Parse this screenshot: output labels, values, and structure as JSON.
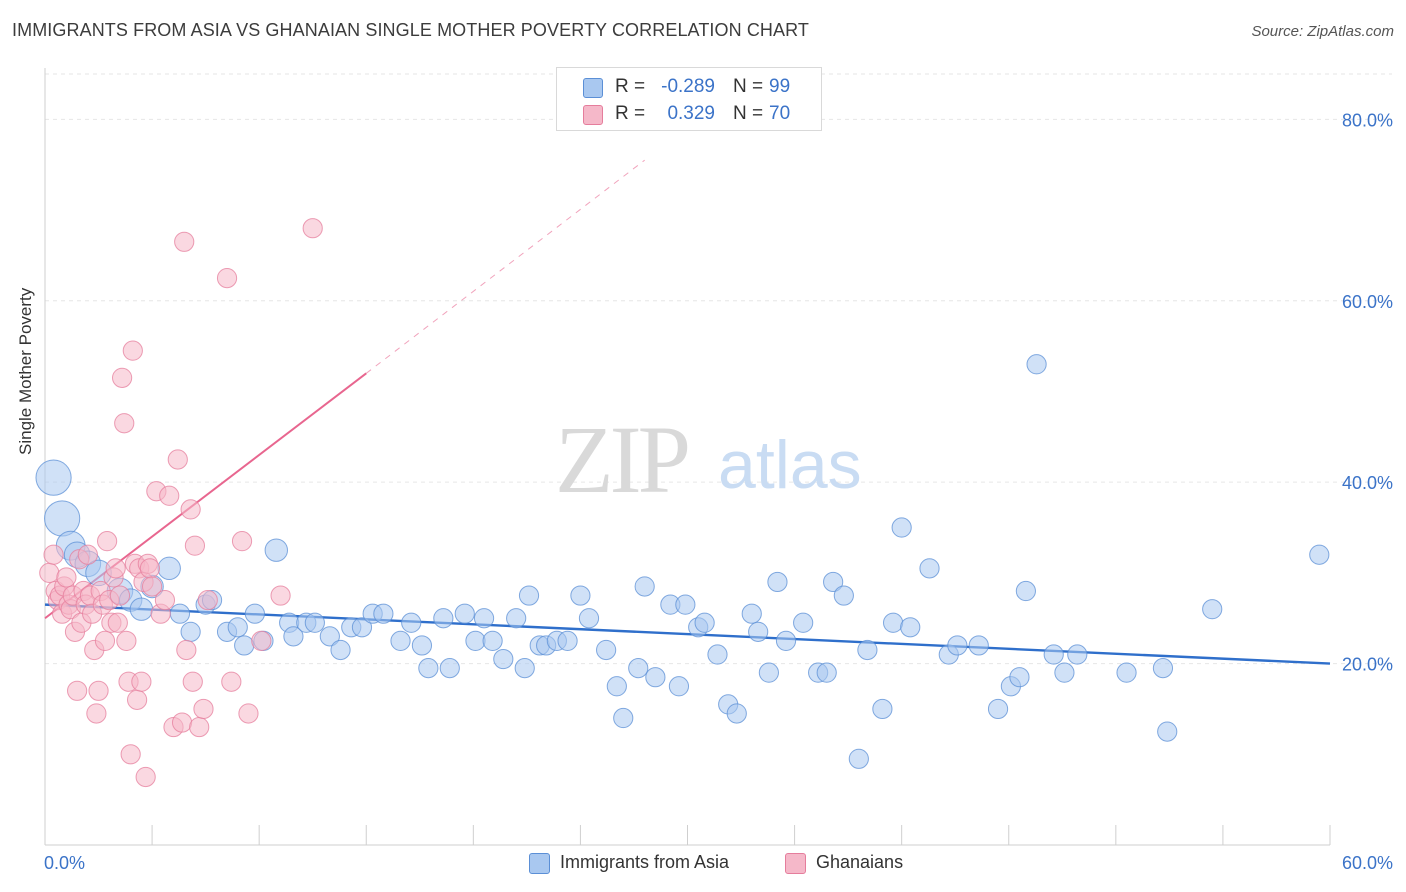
{
  "header": {
    "title": "IMMIGRANTS FROM ASIA VS GHANAIAN SINGLE MOTHER POVERTY CORRELATION CHART",
    "source": "Source: ZipAtlas.com"
  },
  "watermark": {
    "zip": "ZIP",
    "atlas": "atlas"
  },
  "legend": {
    "blue": {
      "r_label": "R =",
      "r_value": "-0.289",
      "n_label": "N =",
      "n_value": "99"
    },
    "pink": {
      "r_label": "R =",
      "r_value": "0.329",
      "n_label": "N =",
      "n_value": "70"
    }
  },
  "colors": {
    "blue_fill": "#a9c8f0",
    "blue_stroke": "#5b8fd6",
    "blue_line": "#2f6fcb",
    "pink_fill": "#f5b8c9",
    "pink_stroke": "#e57d9c",
    "pink_line": "#e8668f",
    "axis_text": "#3b73c8",
    "grid": "#e6e6e6"
  },
  "chart_data": {
    "type": "scatter",
    "title": "IMMIGRANTS FROM ASIA VS GHANAIAN SINGLE MOTHER POVERTY CORRELATION CHART",
    "xlabel": "",
    "ylabel": "Single Mother Poverty",
    "xlim": [
      0,
      60
    ],
    "ylim": [
      0,
      85
    ],
    "x_ticks": [
      "0.0%",
      "60.0%"
    ],
    "y_ticks": [
      "20.0%",
      "40.0%",
      "60.0%",
      "80.0%"
    ],
    "y_tick_values": [
      20,
      40,
      60,
      80
    ],
    "grid": true,
    "legend_position": "top-center",
    "series": [
      {
        "name": "Immigrants from Asia",
        "color": "#a9c8f0",
        "points": [
          [
            0.4,
            40.5,
            22
          ],
          [
            0.8,
            36,
            22
          ],
          [
            1.2,
            33,
            18
          ],
          [
            1.5,
            32,
            16
          ],
          [
            2,
            31,
            16
          ],
          [
            2.5,
            30,
            16
          ],
          [
            3.5,
            28,
            16
          ],
          [
            4,
            27,
            14
          ],
          [
            4.5,
            26,
            14
          ],
          [
            5,
            28.5,
            14
          ],
          [
            5.8,
            30.5,
            14
          ],
          [
            6.3,
            25.5,
            12
          ],
          [
            6.8,
            23.5,
            12
          ],
          [
            7.5,
            26.5,
            12
          ],
          [
            7.8,
            27,
            12
          ],
          [
            8.5,
            23.5,
            12
          ],
          [
            9,
            24,
            12
          ],
          [
            9.3,
            22,
            12
          ],
          [
            9.8,
            25.5,
            12
          ],
          [
            10.2,
            22.5,
            12
          ],
          [
            10.8,
            32.5,
            14
          ],
          [
            11.4,
            24.5,
            12
          ],
          [
            11.6,
            23,
            12
          ],
          [
            12.2,
            24.5,
            12
          ],
          [
            12.6,
            24.5,
            12
          ],
          [
            13.3,
            23,
            12
          ],
          [
            13.8,
            21.5,
            12
          ],
          [
            14.3,
            24,
            12
          ],
          [
            14.8,
            24,
            12
          ],
          [
            15.3,
            25.5,
            12
          ],
          [
            15.8,
            25.5,
            12
          ],
          [
            16.6,
            22.5,
            12
          ],
          [
            17.1,
            24.5,
            12
          ],
          [
            17.6,
            22,
            12
          ],
          [
            17.9,
            19.5,
            12
          ],
          [
            18.6,
            25,
            12
          ],
          [
            18.9,
            19.5,
            12
          ],
          [
            19.6,
            25.5,
            12
          ],
          [
            20.1,
            22.5,
            12
          ],
          [
            20.5,
            25,
            12
          ],
          [
            20.9,
            22.5,
            12
          ],
          [
            21.4,
            20.5,
            12
          ],
          [
            22,
            25,
            12
          ],
          [
            22.4,
            19.5,
            12
          ],
          [
            22.6,
            27.5,
            12
          ],
          [
            23.1,
            22,
            12
          ],
          [
            23.4,
            22,
            12
          ],
          [
            23.9,
            22.5,
            12
          ],
          [
            24.4,
            22.5,
            12
          ],
          [
            25,
            27.5,
            12
          ],
          [
            25.4,
            25,
            12
          ],
          [
            26.2,
            21.5,
            12
          ],
          [
            26.7,
            17.5,
            12
          ],
          [
            27,
            14,
            12
          ],
          [
            27.7,
            19.5,
            12
          ],
          [
            28,
            28.5,
            12
          ],
          [
            28.5,
            18.5,
            12
          ],
          [
            29.2,
            26.5,
            12
          ],
          [
            29.6,
            17.5,
            12
          ],
          [
            29.9,
            26.5,
            12
          ],
          [
            30.5,
            24,
            12
          ],
          [
            30.8,
            24.5,
            12
          ],
          [
            31.4,
            21,
            12
          ],
          [
            31.9,
            15.5,
            12
          ],
          [
            32.3,
            14.5,
            12
          ],
          [
            33,
            25.5,
            12
          ],
          [
            33.3,
            23.5,
            12
          ],
          [
            33.8,
            19,
            12
          ],
          [
            34.2,
            29,
            12
          ],
          [
            34.6,
            22.5,
            12
          ],
          [
            35.4,
            24.5,
            12
          ],
          [
            36.1,
            19,
            12
          ],
          [
            36.5,
            19,
            12
          ],
          [
            36.8,
            29,
            12
          ],
          [
            37.3,
            27.5,
            12
          ],
          [
            38,
            9.5,
            12
          ],
          [
            38.4,
            21.5,
            12
          ],
          [
            39.1,
            15,
            12
          ],
          [
            39.6,
            24.5,
            12
          ],
          [
            40,
            35,
            12
          ],
          [
            40.4,
            24,
            12
          ],
          [
            41.3,
            30.5,
            12
          ],
          [
            42.2,
            21,
            12
          ],
          [
            42.6,
            22,
            12
          ],
          [
            43.6,
            22,
            12
          ],
          [
            44.5,
            15,
            12
          ],
          [
            45.1,
            17.5,
            12
          ],
          [
            45.5,
            18.5,
            12
          ],
          [
            45.8,
            28,
            12
          ],
          [
            46.3,
            53,
            12
          ],
          [
            47.1,
            21,
            12
          ],
          [
            47.6,
            19,
            12
          ],
          [
            48.2,
            21,
            12
          ],
          [
            50.5,
            19,
            12
          ],
          [
            52.2,
            19.5,
            12
          ],
          [
            52.4,
            12.5,
            12
          ],
          [
            54.5,
            26,
            12
          ],
          [
            59.5,
            32,
            12
          ]
        ]
      },
      {
        "name": "Ghanaians",
        "color": "#f5b8c9",
        "points": [
          [
            0.2,
            30,
            12
          ],
          [
            0.4,
            32,
            12
          ],
          [
            0.5,
            28,
            12
          ],
          [
            0.6,
            27,
            12
          ],
          [
            0.7,
            27.5,
            12
          ],
          [
            0.8,
            25.5,
            12
          ],
          [
            0.9,
            28.5,
            12
          ],
          [
            1,
            29.5,
            12
          ],
          [
            1.1,
            26.5,
            12
          ],
          [
            1.2,
            26,
            12
          ],
          [
            1.3,
            27.5,
            12
          ],
          [
            1.4,
            23.5,
            12
          ],
          [
            1.5,
            17,
            12
          ],
          [
            1.6,
            31.5,
            12
          ],
          [
            1.7,
            24.5,
            12
          ],
          [
            1.8,
            28,
            12
          ],
          [
            1.9,
            26.5,
            12
          ],
          [
            2,
            32,
            12
          ],
          [
            2.1,
            27.5,
            12
          ],
          [
            2.2,
            25.5,
            12
          ],
          [
            2.3,
            21.5,
            12
          ],
          [
            2.4,
            14.5,
            12
          ],
          [
            2.5,
            17,
            12
          ],
          [
            2.6,
            28,
            12
          ],
          [
            2.7,
            26.5,
            12
          ],
          [
            2.8,
            22.5,
            12
          ],
          [
            2.9,
            33.5,
            12
          ],
          [
            3,
            27,
            12
          ],
          [
            3.1,
            24.5,
            12
          ],
          [
            3.2,
            29.5,
            12
          ],
          [
            3.3,
            30.5,
            12
          ],
          [
            3.4,
            24.5,
            12
          ],
          [
            3.5,
            27.5,
            12
          ],
          [
            3.6,
            51.5,
            12
          ],
          [
            3.7,
            46.5,
            12
          ],
          [
            3.8,
            22.5,
            12
          ],
          [
            3.9,
            18,
            12
          ],
          [
            4,
            10,
            12
          ],
          [
            4.1,
            54.5,
            12
          ],
          [
            4.2,
            31,
            12
          ],
          [
            4.3,
            16,
            12
          ],
          [
            4.4,
            30.5,
            12
          ],
          [
            4.5,
            18,
            12
          ],
          [
            4.6,
            29,
            12
          ],
          [
            4.7,
            7.5,
            12
          ],
          [
            4.8,
            31,
            12
          ],
          [
            4.9,
            30.5,
            12
          ],
          [
            5,
            28.5,
            12
          ],
          [
            5.2,
            39,
            12
          ],
          [
            5.4,
            25.5,
            12
          ],
          [
            5.6,
            27,
            12
          ],
          [
            5.8,
            38.5,
            12
          ],
          [
            6,
            13,
            12
          ],
          [
            6.2,
            42.5,
            12
          ],
          [
            6.4,
            13.5,
            12
          ],
          [
            6.5,
            66.5,
            12
          ],
          [
            6.6,
            21.5,
            12
          ],
          [
            6.8,
            37,
            12
          ],
          [
            6.9,
            18,
            12
          ],
          [
            7,
            33,
            12
          ],
          [
            7.2,
            13,
            12
          ],
          [
            7.4,
            15,
            12
          ],
          [
            7.6,
            27,
            12
          ],
          [
            8.5,
            62.5,
            12
          ],
          [
            8.7,
            18,
            12
          ],
          [
            9.2,
            33.5,
            12
          ],
          [
            9.5,
            14.5,
            12
          ],
          [
            10.1,
            22.5,
            12
          ],
          [
            11,
            27.5,
            12
          ],
          [
            12.5,
            68,
            12
          ]
        ]
      }
    ],
    "trendlines": [
      {
        "series": "Immigrants from Asia",
        "x": [
          0,
          60
        ],
        "y": [
          26.5,
          20
        ],
        "style": "solid"
      },
      {
        "series": "Ghanaians",
        "x": [
          0,
          15
        ],
        "y": [
          25,
          52
        ],
        "style": "solid"
      },
      {
        "series": "Ghanaians",
        "x": [
          15,
          28
        ],
        "y": [
          52,
          75.5
        ],
        "style": "dashed"
      }
    ]
  }
}
